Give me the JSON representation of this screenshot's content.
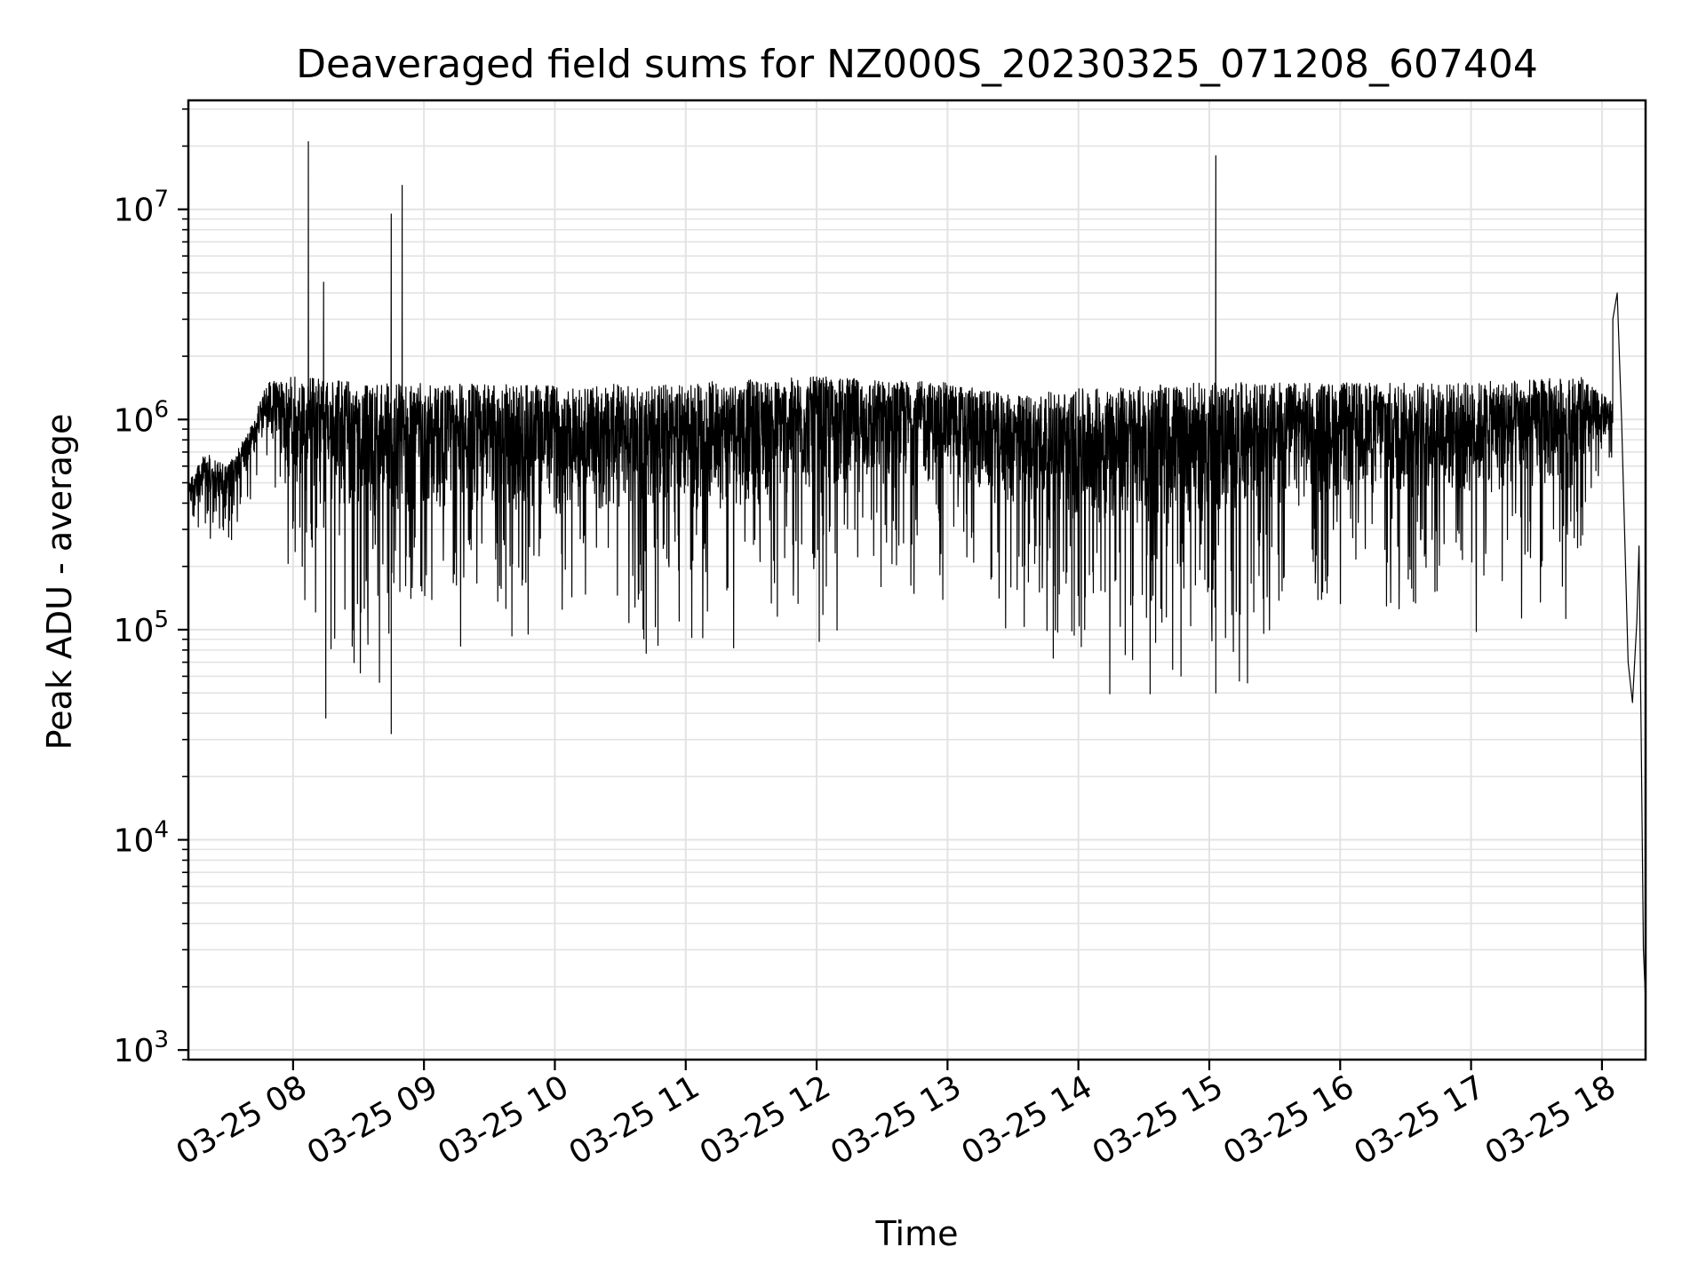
{
  "chart_data": {
    "type": "line",
    "title": "Deaveraged field sums for NZ000S_20230325_071208_607404",
    "xlabel": "Time",
    "ylabel": "Peak ADU - average",
    "yscale": "log",
    "ylim": [
      900,
      33000000
    ],
    "xlim": [
      "03-25 07:12",
      "03-25 18:20"
    ],
    "grid": true,
    "line_color": "#000000",
    "grid_color": "#e3e3e3",
    "x_ticks": [
      "03-25 08",
      "03-25 09",
      "03-25 10",
      "03-25 11",
      "03-25 12",
      "03-25 13",
      "03-25 14",
      "03-25 15",
      "03-25 16",
      "03-25 17",
      "03-25 18"
    ],
    "y_ticks": [
      {
        "base": "10",
        "exp": "3"
      },
      {
        "base": "10",
        "exp": "4"
      },
      {
        "base": "10",
        "exp": "5"
      },
      {
        "base": "10",
        "exp": "6"
      },
      {
        "base": "10",
        "exp": "7"
      }
    ],
    "series": [
      {
        "upper_envelope": [
          [
            "03-25 07:12",
            500000
          ],
          [
            "03-25 07:20",
            700000
          ],
          [
            "03-25 07:30",
            600000
          ],
          [
            "03-25 07:40",
            900000
          ],
          [
            "03-25 07:48",
            1500000
          ],
          [
            "03-25 08:00",
            1600000
          ],
          [
            "03-25 08:30",
            1500000
          ],
          [
            "03-25 09:00",
            1500000
          ],
          [
            "03-25 10:00",
            1450000
          ],
          [
            "03-25 11:00",
            1500000
          ],
          [
            "03-25 12:00",
            1600000
          ],
          [
            "03-25 13:00",
            1500000
          ],
          [
            "03-25 13:30",
            1300000
          ],
          [
            "03-25 14:00",
            1400000
          ],
          [
            "03-25 15:00",
            1500000
          ],
          [
            "03-25 16:00",
            1500000
          ],
          [
            "03-25 17:00",
            1500000
          ],
          [
            "03-25 17:50",
            1600000
          ],
          [
            "03-25 18:05",
            1200000
          ]
        ],
        "lower_envelope": [
          [
            "03-25 07:12",
            300000
          ],
          [
            "03-25 07:20",
            250000
          ],
          [
            "03-25 07:30",
            200000
          ],
          [
            "03-25 07:40",
            350000
          ],
          [
            "03-25 07:48",
            500000
          ],
          [
            "03-25 08:00",
            100000
          ],
          [
            "03-25 08:30",
            50000
          ],
          [
            "03-25 09:00",
            55000
          ],
          [
            "03-25 10:00",
            60000
          ],
          [
            "03-25 11:00",
            60000
          ],
          [
            "03-25 12:00",
            80000
          ],
          [
            "03-25 13:00",
            120000
          ],
          [
            "03-25 13:30",
            70000
          ],
          [
            "03-25 14:00",
            45000
          ],
          [
            "03-25 15:00",
            45000
          ],
          [
            "03-25 16:00",
            80000
          ],
          [
            "03-25 17:00",
            80000
          ],
          [
            "03-25 17:50",
            100000
          ],
          [
            "03-25 18:05",
            600000
          ]
        ],
        "points": [
          [
            "03-25 08:07",
            21000000
          ],
          [
            "03-25 08:14",
            4500000
          ],
          [
            "03-25 08:15",
            38000
          ],
          [
            "03-25 08:45",
            9500000
          ],
          [
            "03-25 08:45",
            32000
          ],
          [
            "03-25 08:50",
            13000000
          ],
          [
            "03-25 15:03",
            18000000
          ],
          [
            "03-25 15:03",
            50000
          ],
          [
            "03-25 18:05",
            3000000
          ],
          [
            "03-25 18:07",
            4000000
          ],
          [
            "03-25 18:09",
            1000000
          ],
          [
            "03-25 18:12",
            70000
          ],
          [
            "03-25 18:14",
            45000
          ],
          [
            "03-25 18:16",
            110000
          ],
          [
            "03-25 18:17",
            250000
          ],
          [
            "03-25 18:18",
            30000
          ],
          [
            "03-25 18:19",
            3000
          ],
          [
            "03-25 18:20",
            1700
          ]
        ]
      }
    ]
  }
}
